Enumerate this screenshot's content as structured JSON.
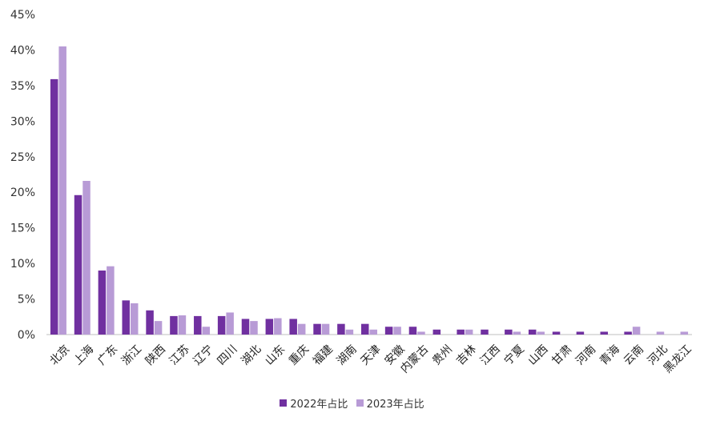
{
  "chart_data": {
    "type": "bar",
    "categories": [
      "北京",
      "上海",
      "广东",
      "浙江",
      "陕西",
      "江苏",
      "辽宁",
      "四川",
      "湖北",
      "山东",
      "重庆",
      "福建",
      "湖南",
      "天津",
      "安徽",
      "内蒙古",
      "贵州",
      "吉林",
      "江西",
      "宁夏",
      "山西",
      "甘肃",
      "河南",
      "青海",
      "云南",
      "河北",
      "黑龙江"
    ],
    "series": [
      {
        "name": "2022年占比",
        "color": "#7030a0",
        "values": [
          35.9,
          19.6,
          9.0,
          4.8,
          3.4,
          2.6,
          2.6,
          2.6,
          2.2,
          2.2,
          2.2,
          1.5,
          1.5,
          1.5,
          1.1,
          1.1,
          0.7,
          0.7,
          0.7,
          0.7,
          0.7,
          0.4,
          0.4,
          0.4,
          0.4,
          0,
          0
        ]
      },
      {
        "name": "2023年占比",
        "color": "#b89bd6",
        "values": [
          40.5,
          21.6,
          9.6,
          4.4,
          1.9,
          2.7,
          1.1,
          3.1,
          1.9,
          2.3,
          1.5,
          1.5,
          0.7,
          0.7,
          1.1,
          0.4,
          0,
          0.7,
          0,
          0.4,
          0.4,
          0,
          0,
          0,
          1.1,
          0.4,
          0.4
        ]
      }
    ],
    "yticks": [
      "0%",
      "5%",
      "10%",
      "15%",
      "20%",
      "25%",
      "30%",
      "35%",
      "40%",
      "45%"
    ],
    "ylim": [
      0,
      45
    ],
    "legend_position": "bottom"
  }
}
